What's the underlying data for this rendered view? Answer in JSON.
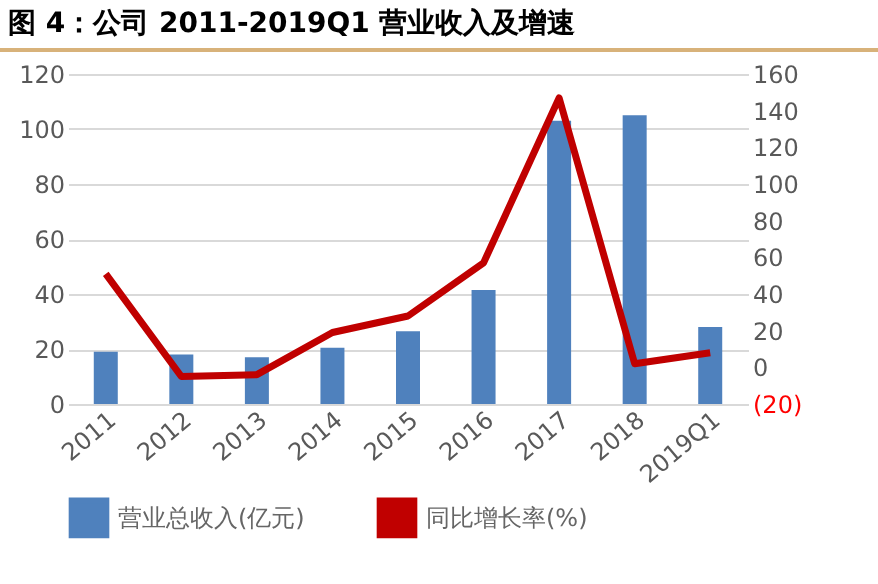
{
  "chart_data": {
    "type": "bar",
    "title": "图 4：公司 2011-2019Q1 营业收入及增速",
    "categories": [
      "2011",
      "2012",
      "2013",
      "2014",
      "2015",
      "2016",
      "2017",
      "2018",
      "2019Q1"
    ],
    "series": [
      {
        "name": "营业总收入(亿元)",
        "color": "#4f81bd",
        "values": [
          19,
          18,
          17,
          20.5,
          26.5,
          41.5,
          103,
          105,
          28
        ]
      },
      {
        "name": "同比增长率(%)",
        "type": "line",
        "axis": "y2",
        "color": "#c00000",
        "values": [
          51,
          -5,
          -4,
          19,
          28,
          57,
          147,
          2,
          8
        ]
      }
    ],
    "ylim": [
      0,
      120
    ],
    "yticks": [
      0,
      20,
      40,
      60,
      80,
      100,
      120
    ],
    "y2lim": [
      -20,
      160
    ],
    "y2ticks": [
      {
        "value": -20,
        "label": "(20)"
      },
      0,
      20,
      40,
      60,
      80,
      100,
      120,
      140,
      160
    ],
    "grid": "y",
    "legend": "bottom",
    "marker": "none",
    "line_style": "solid"
  }
}
